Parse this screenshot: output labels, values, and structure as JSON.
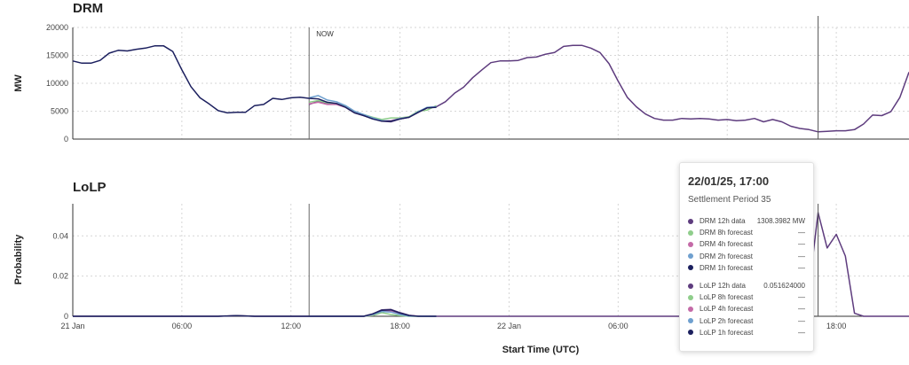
{
  "panels": {
    "drm_title": "DRM",
    "lolp_title": "LoLP",
    "drm_ylabel": "MW",
    "lolp_ylabel": "Probability",
    "xlabel": "Start Time (UTC)",
    "now_label": "NOW"
  },
  "tooltip": {
    "title": "22/01/25, 17:00",
    "subtitle": "Settlement Period 35",
    "drm_rows": [
      {
        "name": "DRM 12h data",
        "value": "1308.3982 MW",
        "color": "#5e3c7e"
      },
      {
        "name": "DRM 8h forecast",
        "value": "—",
        "color": "#8fce8b"
      },
      {
        "name": "DRM 4h forecast",
        "value": "—",
        "color": "#c46aa7"
      },
      {
        "name": "DRM 2h forecast",
        "value": "—",
        "color": "#6fa0cf"
      },
      {
        "name": "DRM 1h forecast",
        "value": "—",
        "color": "#1b1f5e"
      }
    ],
    "lolp_rows": [
      {
        "name": "LoLP 12h data",
        "value": "0.051624000",
        "color": "#5e3c7e"
      },
      {
        "name": "LoLP 8h forecast",
        "value": "—",
        "color": "#8fce8b"
      },
      {
        "name": "LoLP 4h forecast",
        "value": "—",
        "color": "#c46aa7"
      },
      {
        "name": "LoLP 2h forecast",
        "value": "—",
        "color": "#6fa0cf"
      },
      {
        "name": "LoLP 1h forecast",
        "value": "—",
        "color": "#1b1f5e"
      }
    ]
  },
  "chart_data": [
    {
      "type": "line",
      "title": "DRM",
      "xlabel": "Start Time (UTC)",
      "ylabel": "MW",
      "x_unit": "hours since 21 Jan 00:00 UTC",
      "xlim": [
        0,
        46
      ],
      "ylim": [
        0,
        20000
      ],
      "yticks": [
        0,
        5000,
        10000,
        15000,
        20000
      ],
      "xticks": [
        {
          "x": 0,
          "label": "21 Jan"
        },
        {
          "x": 6,
          "label": "06:00"
        },
        {
          "x": 12,
          "label": "12:00"
        },
        {
          "x": 18,
          "label": "18:00"
        },
        {
          "x": 24,
          "label": "22 Jan"
        },
        {
          "x": 30,
          "label": "06:00"
        },
        {
          "x": 36,
          "label": "12:00"
        },
        {
          "x": 42,
          "label": "18:00"
        }
      ],
      "now_x": 13,
      "hover_x": 41,
      "grid": true,
      "series": [
        {
          "name": "DRM 12h data",
          "color": "#5e3c7e",
          "x": [
            13,
            13.5,
            14,
            14.5,
            15,
            15.5,
            16,
            16.5,
            17,
            17.5,
            18,
            18.5,
            19,
            19.5,
            20,
            20.5,
            21,
            21.5,
            22,
            22.5,
            23,
            23.5,
            24,
            24.5,
            25,
            25.5,
            26,
            26.5,
            27,
            27.5,
            28,
            28.5,
            29,
            29.5,
            30,
            30.5,
            31,
            31.5,
            32,
            32.5,
            33,
            33.5,
            34,
            34.5,
            35,
            35.5,
            36,
            36.5,
            37,
            37.5,
            38,
            38.5,
            39,
            39.5,
            40,
            40.5,
            41,
            41.5,
            42,
            42.5,
            43,
            43.5,
            44,
            44.5,
            45,
            45.5,
            46
          ],
          "y": [
            6200,
            6800,
            6400,
            6300,
            5800,
            4800,
            4300,
            3800,
            3200,
            3100,
            3600,
            3900,
            4900,
            5600,
            5800,
            6700,
            8200,
            9300,
            11000,
            12400,
            13700,
            14000,
            14000,
            14100,
            14600,
            14700,
            15200,
            15500,
            16600,
            16800,
            16800,
            16300,
            15500,
            13500,
            10400,
            7500,
            5800,
            4500,
            3700,
            3400,
            3400,
            3700,
            3600,
            3700,
            3600,
            3400,
            3500,
            3300,
            3400,
            3700,
            3100,
            3500,
            3100,
            2300,
            1900,
            1700,
            1300,
            1400,
            1500,
            1500,
            1700,
            2700,
            4300,
            4200,
            4900,
            7500,
            12000
          ]
        },
        {
          "name": "DRM 8h forecast",
          "color": "#8fce8b",
          "x": [
            13,
            13.5,
            14,
            14.5,
            15,
            15.5,
            16,
            16.5,
            17,
            17.5,
            18,
            18.5,
            19,
            19.5,
            20
          ],
          "y": [
            6600,
            6900,
            6500,
            6300,
            5800,
            4900,
            4400,
            3900,
            3500,
            3800,
            3800,
            4000,
            5000,
            5200,
            6000
          ]
        },
        {
          "name": "DRM 4h forecast",
          "color": "#c46aa7",
          "x": [
            13,
            13.5,
            14,
            14.5,
            15,
            15.5,
            16,
            16.5,
            17,
            17.5,
            18,
            18.5,
            19,
            19.5,
            20
          ],
          "y": [
            6300,
            6600,
            6200,
            6200,
            5700,
            4700,
            4200,
            3700,
            3200,
            3300,
            3700,
            3900,
            4800,
            5600,
            5800
          ]
        },
        {
          "name": "DRM 2h forecast",
          "color": "#6fa0cf",
          "x": [
            13,
            13.5,
            14,
            14.5,
            15,
            15.5,
            16,
            16.5,
            17,
            17.5,
            18,
            18.5,
            19,
            19.5,
            20
          ],
          "y": [
            7400,
            7800,
            7000,
            6700,
            6000,
            5000,
            4400,
            3800,
            3300,
            3200,
            3700,
            3900,
            4900,
            5700,
            5800
          ]
        },
        {
          "name": "DRM 1h forecast",
          "color": "#1b1f5e",
          "x": [
            0,
            0.5,
            1,
            1.5,
            2,
            2.5,
            3,
            3.5,
            4,
            4.5,
            5,
            5.5,
            6,
            6.5,
            7,
            7.5,
            8,
            8.5,
            9,
            9.5,
            10,
            10.5,
            11,
            11.5,
            12,
            12.5,
            13,
            13.5,
            14,
            14.5,
            15,
            15.5,
            16,
            16.5,
            17,
            17.5,
            18,
            18.5,
            19,
            19.5,
            20
          ],
          "y": [
            14000,
            13600,
            13600,
            14100,
            15400,
            15900,
            15800,
            16100,
            16300,
            16700,
            16700,
            15700,
            12400,
            9400,
            7400,
            6300,
            5100,
            4700,
            4800,
            4800,
            6000,
            6200,
            7300,
            7100,
            7400,
            7500,
            7300,
            7200,
            6600,
            6400,
            5700,
            4700,
            4200,
            3600,
            3200,
            3200,
            3600,
            3900,
            4800,
            5600,
            5700
          ]
        }
      ]
    },
    {
      "type": "line",
      "title": "LoLP",
      "xlabel": "Start Time (UTC)",
      "ylabel": "Probability",
      "x_unit": "hours since 21 Jan 00:00 UTC",
      "xlim": [
        0,
        46
      ],
      "ylim": [
        0,
        0.056
      ],
      "yticks": [
        0,
        0.02,
        0.04
      ],
      "ytick_labels": [
        "0",
        "0.02",
        "0.04"
      ],
      "now_x": 13,
      "hover_x": 41,
      "grid": true,
      "series": [
        {
          "name": "LoLP 12h data",
          "color": "#5e3c7e",
          "x": [
            0,
            8,
            9,
            10,
            16,
            16.5,
            17,
            17.5,
            18,
            18.5,
            19,
            19.5,
            40,
            40.5,
            41,
            41.5,
            42,
            42.5,
            43,
            43.5,
            44,
            46
          ],
          "y": [
            0,
            0,
            0.0003,
            0,
            0,
            0.0012,
            0.0032,
            0.0034,
            0.0018,
            0.0005,
            0,
            0,
            0,
            0.014,
            0.0516,
            0.034,
            0.0408,
            0.03,
            0.0015,
            0,
            0,
            0
          ]
        },
        {
          "name": "LoLP 8h forecast",
          "color": "#8fce8b",
          "x": [
            13,
            16,
            16.5,
            17,
            17.5,
            18,
            18.5,
            20
          ],
          "y": [
            0,
            0,
            0.0004,
            0.0018,
            0.0009,
            0.0003,
            0,
            0
          ]
        },
        {
          "name": "LoLP 4h forecast",
          "color": "#c46aa7",
          "x": [
            13,
            16,
            16.5,
            17,
            17.5,
            18,
            18.5,
            20
          ],
          "y": [
            0,
            0,
            0.0008,
            0.0028,
            0.0026,
            0.0012,
            0.0002,
            0
          ]
        },
        {
          "name": "LoLP 2h forecast",
          "color": "#6fa0cf",
          "x": [
            13,
            16,
            16.5,
            17,
            17.5,
            18,
            18.5,
            20
          ],
          "y": [
            0,
            0,
            0.0009,
            0.0024,
            0.0021,
            0.0009,
            0.0001,
            0
          ]
        },
        {
          "name": "LoLP 1h forecast",
          "color": "#1b1f5e",
          "x": [
            0,
            8,
            9,
            10,
            13,
            16,
            16.5,
            17,
            17.5,
            18,
            18.5,
            19,
            20
          ],
          "y": [
            0,
            0,
            0.0003,
            0,
            0,
            0,
            0.0012,
            0.003,
            0.0032,
            0.0016,
            0.0004,
            0,
            0
          ]
        }
      ]
    }
  ]
}
